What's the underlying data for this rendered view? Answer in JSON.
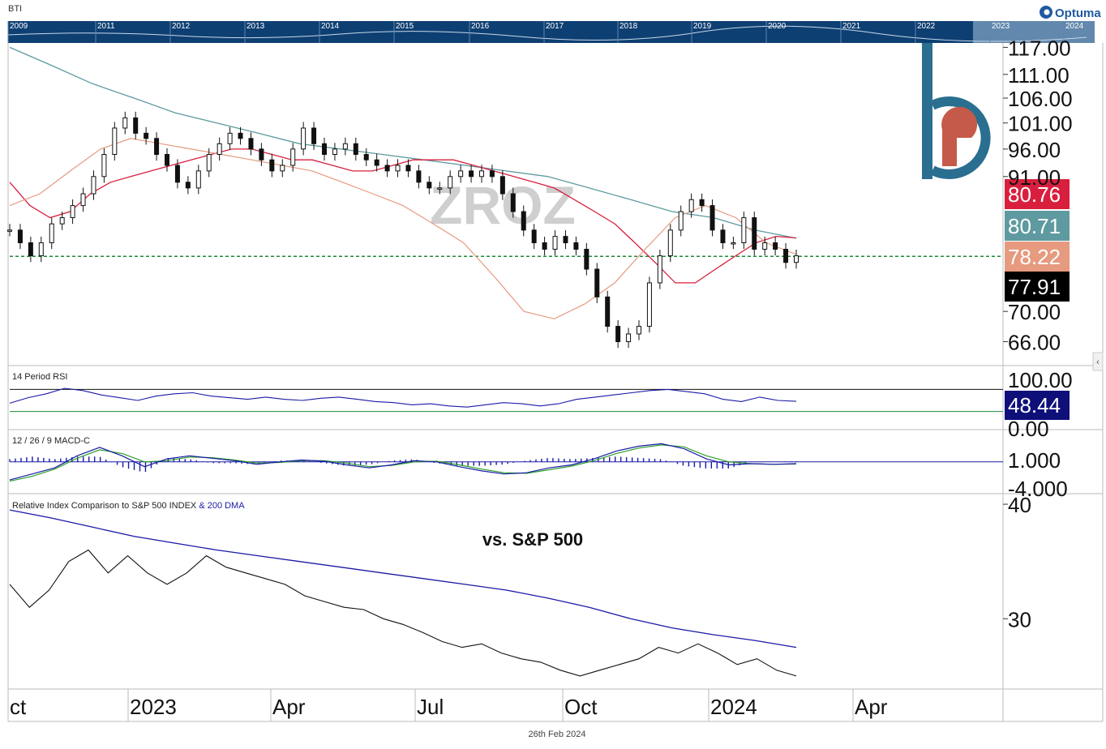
{
  "header": {
    "ticker": "BTI",
    "brand": "Optuma"
  },
  "overview": {
    "years": [
      "2009",
      "2011",
      "2012",
      "2013",
      "2014",
      "2015",
      "2016",
      "2017",
      "2018",
      "2019",
      "2020",
      "2021",
      "2022",
      "2023",
      "2024"
    ]
  },
  "watermark": "ZROZ",
  "footer_date": "26th Feb 2024",
  "colors": {
    "ma_red": "#d81f3e",
    "ma_teal": "#5e9aa0",
    "ma_salmon": "#e69a7f",
    "rsi": "#1a1aa6",
    "macd_signal": "#2aa02a",
    "rel_dma": "#1a1aa6",
    "ref_line": "#1c8a3a",
    "logo": "#2a6f8f"
  },
  "chart_data": [
    {
      "type": "candlestick",
      "title": "",
      "x_labels": [
        "Oct",
        "2023",
        "Apr",
        "Jul",
        "Oct",
        "2024",
        "Apr"
      ],
      "x_label_display": [
        "ct",
        "2023",
        "Apr",
        "Jul",
        "Oct",
        "2024",
        "Apr"
      ],
      "y_ticks": [
        "117.00",
        "111.00",
        "106.00",
        "101.00",
        "96.00",
        "91.00",
        "70.00",
        "66.00"
      ],
      "ylim": [
        63,
        118
      ],
      "log_scale": true,
      "reference_level": 77.91,
      "series": [
        {
          "name": "price",
          "values": [
            82,
            80,
            78,
            80,
            83,
            84,
            86,
            88,
            91,
            95,
            100,
            102,
            99,
            98,
            95,
            93,
            90,
            89,
            92,
            95,
            97,
            99,
            98,
            96,
            94,
            92,
            93,
            96,
            100,
            97,
            95,
            96,
            97,
            95,
            94,
            93,
            92,
            93,
            92,
            90,
            89,
            89,
            91,
            92,
            91,
            92,
            91,
            88,
            85,
            82,
            80,
            79,
            81,
            80,
            79,
            76,
            72,
            68,
            66,
            67,
            68,
            74,
            78,
            82,
            85,
            87,
            86,
            82,
            80,
            80,
            84,
            79,
            80,
            79,
            77,
            78
          ]
        },
        {
          "name": "MA (red)",
          "values": [
            90,
            86,
            84,
            85,
            88,
            90,
            91,
            92,
            93,
            94,
            95,
            96,
            96,
            95,
            94,
            94,
            93,
            92,
            92,
            93,
            94,
            94,
            94,
            93,
            92,
            91,
            90,
            89,
            87,
            85,
            83,
            80,
            77,
            74,
            74,
            76,
            78,
            80,
            81,
            80.76
          ]
        },
        {
          "name": "MA (teal)",
          "values": [
            117,
            113,
            109,
            106,
            103,
            101,
            99,
            97,
            96,
            95,
            94,
            93,
            92,
            91,
            89,
            87,
            85,
            84,
            82,
            80.71
          ]
        },
        {
          "name": "MA (salmon)",
          "values": [
            86,
            88,
            92,
            96,
            98,
            97,
            96,
            95,
            94,
            93,
            92,
            90,
            88,
            86,
            83,
            80,
            75,
            70,
            69,
            71,
            74,
            79,
            84,
            86,
            84,
            80,
            78.22
          ]
        }
      ],
      "value_labels": [
        {
          "value": "80.76",
          "color": "#d81f3e"
        },
        {
          "value": "80.71",
          "color": "#5e9aa0"
        },
        {
          "value": "78.22",
          "color": "#e69a7f"
        },
        {
          "value": "77.91",
          "color": "#000000"
        }
      ]
    },
    {
      "type": "line",
      "title": "14 Period RSI",
      "y_ticks": [
        "100.00",
        "0.00"
      ],
      "ylim": [
        0,
        100
      ],
      "levels": [
        70,
        30
      ],
      "last_value": "48.44",
      "series": [
        {
          "name": "RSI",
          "values": [
            45,
            55,
            62,
            72,
            68,
            60,
            55,
            50,
            58,
            62,
            64,
            58,
            55,
            52,
            56,
            52,
            50,
            54,
            56,
            52,
            48,
            46,
            42,
            44,
            40,
            38,
            42,
            46,
            44,
            40,
            44,
            52,
            56,
            60,
            64,
            68,
            70,
            66,
            62,
            52,
            48,
            56,
            50,
            48.44
          ]
        }
      ]
    },
    {
      "type": "line",
      "title": "12 / 26 / 9 MACD-C",
      "y_ticks": [
        "1.000",
        "-4.000"
      ],
      "ylim": [
        -5,
        4
      ],
      "zero_level": 0,
      "series": [
        {
          "name": "MACD",
          "values": [
            -3,
            -2,
            -1,
            1,
            2.4,
            1,
            -0.8,
            0.5,
            1,
            0.6,
            0.2,
            -0.4,
            0,
            0.3,
            0.1,
            -0.5,
            -1,
            -0.5,
            0.2,
            0,
            -0.8,
            -1.5,
            -2,
            -1.8,
            -1,
            -0.5,
            0.5,
            1.8,
            2.6,
            3,
            2.2,
            0.5,
            -0.5,
            -0.3,
            -0.4,
            -0.3
          ]
        },
        {
          "name": "Signal",
          "values": [
            -3.2,
            -2.4,
            -1.2,
            0.6,
            2,
            1.4,
            0,
            0.2,
            0.8,
            0.7,
            0.3,
            -0.2,
            -0.1,
            0.2,
            0.2,
            -0.2,
            -0.8,
            -0.6,
            0,
            0.1,
            -0.5,
            -1.2,
            -1.8,
            -1.9,
            -1.3,
            -0.7,
            0.2,
            1.4,
            2.3,
            2.8,
            2.5,
            1,
            0,
            -0.3,
            -0.4,
            -0.35
          ]
        }
      ]
    },
    {
      "type": "line",
      "title": "Relative Index Comparison to S&P 500 INDEX",
      "title_suffix": "& 200 DMA",
      "annotation": "vs. S&P 500",
      "y_ticks": [
        "40",
        "30"
      ],
      "ylim": [
        24,
        40.5
      ],
      "series": [
        {
          "name": "Relative index",
          "values": [
            33,
            31,
            32.5,
            35,
            36,
            34,
            35.5,
            34,
            33,
            34,
            35.5,
            34.5,
            34,
            33.5,
            33,
            32,
            31.5,
            31,
            30.8,
            30,
            29.5,
            28.8,
            28,
            27.5,
            27.8,
            27,
            26.5,
            26.2,
            25.5,
            25,
            25.5,
            26,
            26.5,
            27.5,
            27,
            27.8,
            27,
            26,
            26.5,
            25.5,
            25
          ]
        },
        {
          "name": "200 DMA",
          "values": [
            39.5,
            38.8,
            38,
            37.2,
            36.6,
            36,
            35.5,
            35,
            34.5,
            34,
            33.5,
            33,
            32.5,
            31.8,
            31,
            30,
            29.2,
            28.6,
            28.1,
            27.5
          ]
        }
      ]
    }
  ]
}
